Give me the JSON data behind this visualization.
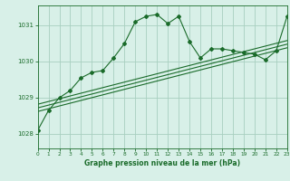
{
  "title": "Graphe pression niveau de la mer (hPa)",
  "bg_color": "#d8f0e8",
  "grid_color": "#a8cfc0",
  "line_color": "#1a6b2a",
  "x_min": 0,
  "x_max": 23,
  "y_min": 1027.6,
  "y_max": 1031.55,
  "y_ticks": [
    1028,
    1029,
    1030,
    1031
  ],
  "main_data": [
    [
      0,
      1028.1
    ],
    [
      1,
      1028.65
    ],
    [
      2,
      1029.0
    ],
    [
      3,
      1029.2
    ],
    [
      4,
      1029.55
    ],
    [
      5,
      1029.7
    ],
    [
      6,
      1029.75
    ],
    [
      7,
      1030.1
    ],
    [
      8,
      1030.5
    ],
    [
      9,
      1031.1
    ],
    [
      10,
      1031.25
    ],
    [
      11,
      1031.3
    ],
    [
      12,
      1031.05
    ],
    [
      13,
      1031.25
    ],
    [
      14,
      1030.55
    ],
    [
      15,
      1030.1
    ],
    [
      16,
      1030.35
    ],
    [
      17,
      1030.35
    ],
    [
      18,
      1030.3
    ],
    [
      19,
      1030.25
    ],
    [
      20,
      1030.2
    ],
    [
      21,
      1030.05
    ],
    [
      22,
      1030.3
    ],
    [
      23,
      1031.25
    ]
  ],
  "trend_lines": [
    [
      [
        0,
        1028.62
      ],
      [
        23,
        1030.38
      ]
    ],
    [
      [
        0,
        1028.72
      ],
      [
        23,
        1030.48
      ]
    ],
    [
      [
        0,
        1028.82
      ],
      [
        23,
        1030.58
      ]
    ]
  ]
}
